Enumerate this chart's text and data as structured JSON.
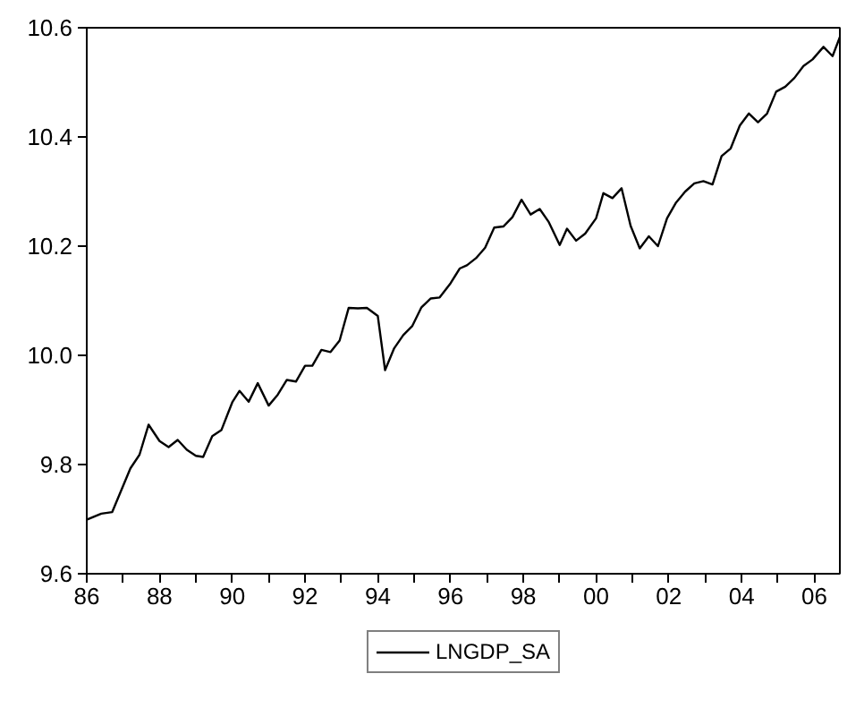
{
  "chart_data": {
    "type": "line",
    "x": [
      1986.0,
      1986.4,
      1986.7,
      1987.2,
      1987.45,
      1987.7,
      1988.0,
      1988.25,
      1988.5,
      1988.75,
      1989.0,
      1989.2,
      1989.45,
      1989.7,
      1990.0,
      1990.2,
      1990.45,
      1990.7,
      1991.0,
      1991.25,
      1991.5,
      1991.75,
      1992.0,
      1992.2,
      1992.45,
      1992.7,
      1992.95,
      1993.2,
      1993.45,
      1993.7,
      1994.0,
      1994.2,
      1994.45,
      1994.7,
      1994.95,
      1995.2,
      1995.45,
      1995.7,
      1996.0,
      1996.25,
      1996.45,
      1996.7,
      1996.95,
      1997.2,
      1997.45,
      1997.7,
      1997.95,
      1998.2,
      1998.45,
      1998.7,
      1999.0,
      1999.2,
      1999.45,
      1999.7,
      2000.0,
      2000.2,
      2000.45,
      2000.7,
      2000.95,
      2001.2,
      2001.45,
      2001.7,
      2001.95,
      2002.2,
      2002.45,
      2002.7,
      2002.95,
      2003.2,
      2003.45,
      2003.7,
      2003.95,
      2004.2,
      2004.45,
      2004.7,
      2004.95,
      2005.2,
      2005.45,
      2005.7,
      2005.95,
      2006.25,
      2006.5,
      2006.7
    ],
    "series": [
      {
        "name": "LNGDP_SA",
        "color": "#000000",
        "values": [
          9.699,
          9.71,
          9.713,
          9.793,
          9.818,
          9.873,
          9.843,
          9.832,
          9.845,
          9.827,
          9.816,
          9.814,
          9.852,
          9.863,
          9.914,
          9.935,
          9.915,
          9.949,
          9.908,
          9.928,
          9.955,
          9.952,
          9.981,
          9.981,
          10.01,
          10.006,
          10.027,
          10.087,
          10.086,
          10.087,
          10.072,
          9.973,
          10.013,
          10.037,
          10.054,
          10.088,
          10.104,
          10.106,
          10.132,
          10.159,
          10.165,
          10.178,
          10.197,
          10.234,
          10.236,
          10.253,
          10.285,
          10.258,
          10.268,
          10.244,
          10.202,
          10.232,
          10.21,
          10.223,
          10.251,
          10.297,
          10.288,
          10.306,
          10.237,
          10.196,
          10.218,
          10.2,
          10.251,
          10.28,
          10.3,
          10.315,
          10.319,
          10.313,
          10.365,
          10.379,
          10.421,
          10.443,
          10.427,
          10.443,
          10.483,
          10.492,
          10.508,
          10.53,
          10.542,
          10.565,
          10.548,
          10.583
        ]
      }
    ],
    "xlim": [
      1986,
      2006.7
    ],
    "ylim": [
      9.6,
      10.6
    ],
    "xticks": [
      {
        "value": 1986,
        "label": "86"
      },
      {
        "value": 1987,
        "label": null
      },
      {
        "value": 1988,
        "label": "88"
      },
      {
        "value": 1989,
        "label": null
      },
      {
        "value": 1990,
        "label": "90"
      },
      {
        "value": 1991,
        "label": null
      },
      {
        "value": 1992,
        "label": "92"
      },
      {
        "value": 1993,
        "label": null
      },
      {
        "value": 1994,
        "label": "94"
      },
      {
        "value": 1995,
        "label": null
      },
      {
        "value": 1996,
        "label": "96"
      },
      {
        "value": 1997,
        "label": null
      },
      {
        "value": 1998,
        "label": "98"
      },
      {
        "value": 1999,
        "label": null
      },
      {
        "value": 2000,
        "label": "00"
      },
      {
        "value": 2001,
        "label": null
      },
      {
        "value": 2002,
        "label": "02"
      },
      {
        "value": 2003,
        "label": null
      },
      {
        "value": 2004,
        "label": "04"
      },
      {
        "value": 2005,
        "label": null
      },
      {
        "value": 2006,
        "label": "06"
      }
    ],
    "yticks": [
      9.6,
      9.8,
      {
        "value": 10,
        "label": "10.0"
      },
      10.2,
      10.4,
      10.6
    ],
    "grid": false,
    "legend": "bottom",
    "marker": "none",
    "line_style": "solid"
  }
}
